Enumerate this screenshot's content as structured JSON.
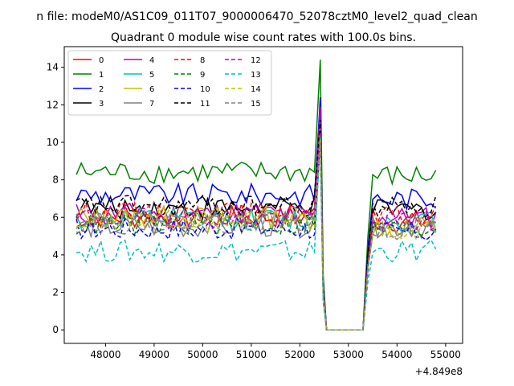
{
  "chart_data": {
    "type": "line",
    "title": "n file: modeM0/AS1C09_011T07_9000006470_52078cztM0_level2_quad_clean",
    "subtitle": "Quadrant 0 module wise count rates with 100.0s bins.",
    "xlabel": "",
    "ylabel": "",
    "x_offset_label": "+4.849e8",
    "xlim": [
      47150,
      55350
    ],
    "ylim": [
      -0.72,
      15.1
    ],
    "x_ticks": [
      48000,
      49000,
      50000,
      51000,
      52000,
      53000,
      54000,
      55000
    ],
    "x_tick_labels": [
      "48000",
      "49000",
      "50000",
      "51000",
      "52000",
      "53000",
      "54000",
      "55000"
    ],
    "y_ticks": [
      0,
      2,
      4,
      6,
      8,
      10,
      12,
      14
    ],
    "y_tick_labels": [
      "0",
      "2",
      "4",
      "6",
      "8",
      "10",
      "12",
      "14"
    ],
    "grid": false,
    "legend_position": "top-left",
    "legend_columns": 4,
    "x_start": 47400,
    "x_step": 100,
    "series": [
      {
        "name": "0",
        "color": "#ff0000",
        "dash": "solid",
        "base": 6.0,
        "peak": 10.6,
        "post": 5.8
      },
      {
        "name": "1",
        "color": "#008000",
        "dash": "solid",
        "base": 8.4,
        "peak": 14.4,
        "post": 8.2
      },
      {
        "name": "2",
        "color": "#0000ff",
        "dash": "solid",
        "base": 7.2,
        "peak": 12.4,
        "post": 7.0
      },
      {
        "name": "3",
        "color": "#000000",
        "dash": "solid",
        "base": 6.5,
        "peak": 11.5,
        "post": 6.4
      },
      {
        "name": "4",
        "color": "#bf00bf",
        "dash": "solid",
        "base": 6.2,
        "peak": 11.9,
        "post": 6.0
      },
      {
        "name": "5",
        "color": "#00bfbf",
        "dash": "solid",
        "base": 5.9,
        "peak": 10.9,
        "post": 5.8
      },
      {
        "name": "6",
        "color": "#bfbf00",
        "dash": "solid",
        "base": 6.0,
        "peak": 10.2,
        "post": 5.5
      },
      {
        "name": "7",
        "color": "#808080",
        "dash": "solid",
        "base": 5.5,
        "peak": 10.0,
        "post": 5.5
      },
      {
        "name": "8",
        "color": "#ff0000",
        "dash": "dashed",
        "base": 6.2,
        "peak": 10.8,
        "post": 6.0
      },
      {
        "name": "9",
        "color": "#008000",
        "dash": "dashed",
        "base": 5.6,
        "peak": 10.4,
        "post": 5.4
      },
      {
        "name": "10",
        "color": "#0000ff",
        "dash": "dashed",
        "base": 5.4,
        "peak": 10.1,
        "post": 5.2
      },
      {
        "name": "11",
        "color": "#000000",
        "dash": "dashed",
        "base": 6.6,
        "peak": 11.2,
        "post": 6.6
      },
      {
        "name": "12",
        "color": "#bf00bf",
        "dash": "dashed",
        "base": 6.0,
        "peak": 10.5,
        "post": 5.8
      },
      {
        "name": "13",
        "color": "#00bfbf",
        "dash": "dashed",
        "base": 4.2,
        "peak": 10.3,
        "post": 4.2
      },
      {
        "name": "14",
        "color": "#bfbf00",
        "dash": "dashed",
        "base": 5.8,
        "peak": 10.2,
        "post": 5.4
      },
      {
        "name": "15",
        "color": "#808080",
        "dash": "dashed",
        "base": 5.7,
        "peak": 10.0,
        "post": 5.4
      }
    ],
    "segments": {
      "pre_end": 52300,
      "peak_x": 52420,
      "drop_end": 52600,
      "zero_end": 53300,
      "post_start": 53500,
      "x_end": 54800
    }
  }
}
